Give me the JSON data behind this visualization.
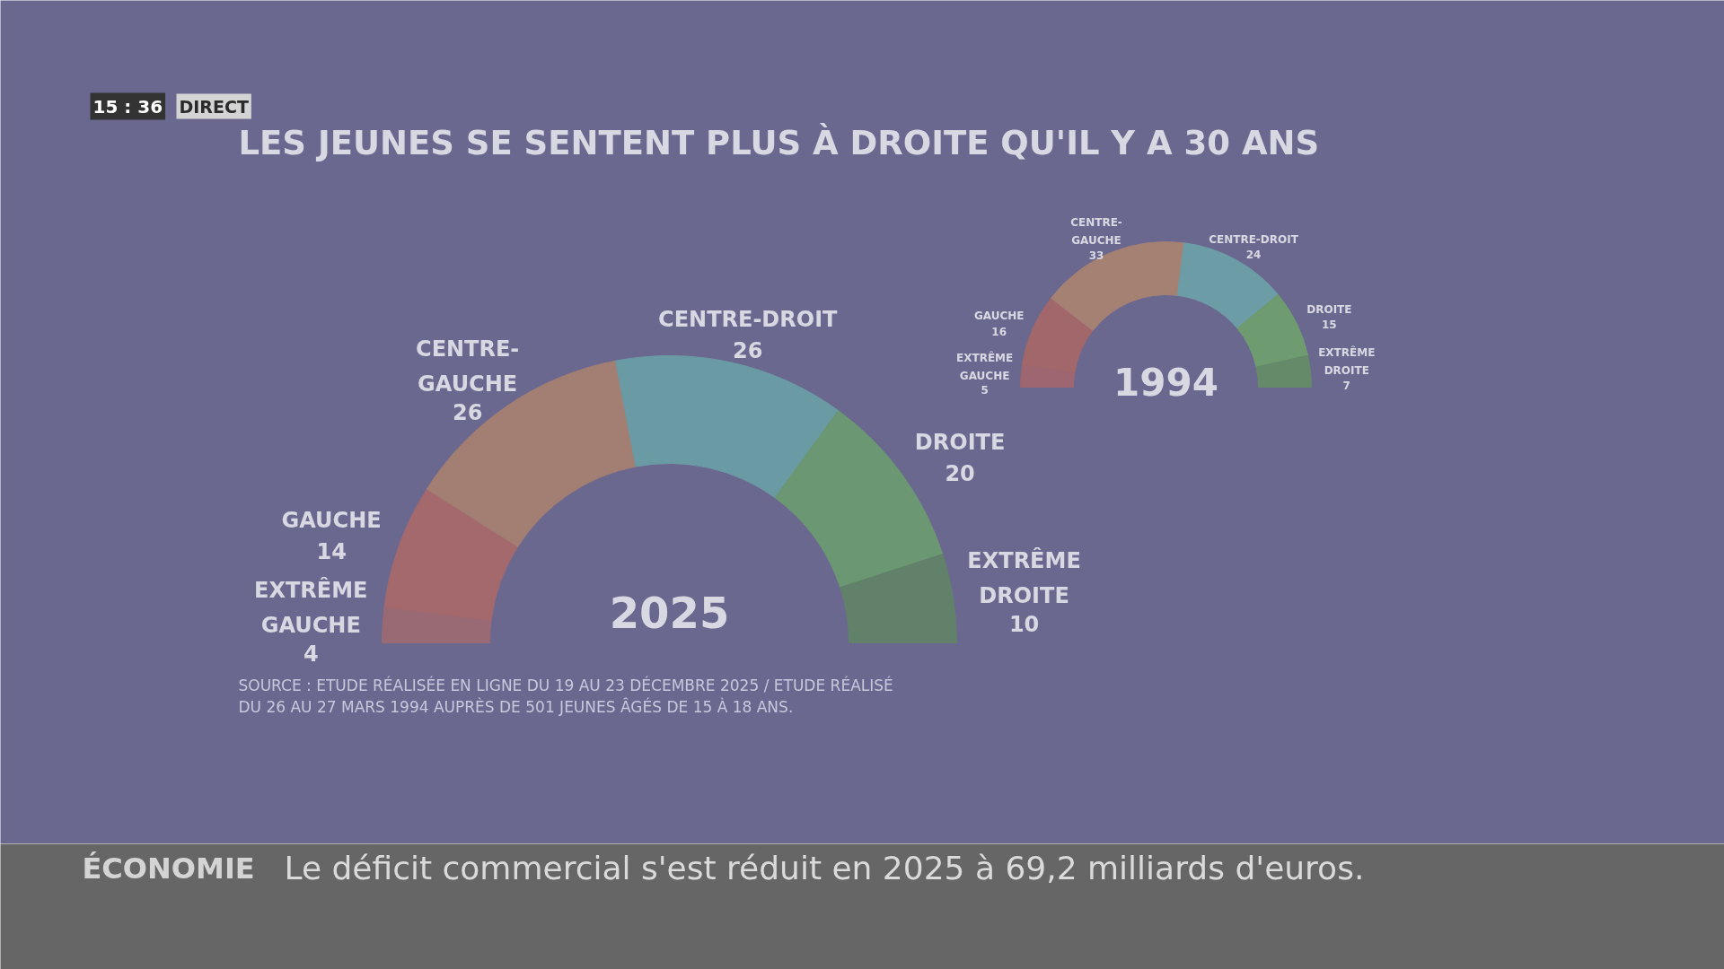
{
  "chart_data": [
    {
      "type": "donut",
      "title": "LES JEUNES SE SENTENT PLUS À DROITE QU'IL Y A 30 ANS",
      "subtitle": "2025",
      "categories": [
        "EXTRÊME GAUCHE",
        "GAUCHE",
        "CENTRE-GAUCHE",
        "CENTRE-DROIT",
        "DROITE",
        "EXTRÊME DROITE"
      ],
      "values": [
        4,
        14,
        26,
        26,
        20,
        10
      ],
      "colors": [
        "#9a6a74",
        "#a3696d",
        "#a27e73",
        "#6a9aa4",
        "#6b9772",
        "#62816a"
      ],
      "data_labels": true,
      "annotations": [
        "15 : 36",
        "DIRECT",
        "SOURCE : ETUDE RÉALISÉE EN LIGNE DU 19 AU 23 DÉCEMBRE 2025 / ETUDE RÉALISÉ DU 26 AU 27 MARS 1994 AUPRÈS DE 501 JEUNES ÂGÉS DE 15 À 18 ANS.",
        "ÉCONOMIE",
        "Le déficit commercial s'est réduit en 2025 à 69,2 milliards d'euros."
      ]
    },
    {
      "type": "donut",
      "subtitle": "1994",
      "categories": [
        "EXTRÊME GAUCHE",
        "GAUCHE",
        "CENTRE-GAUCHE",
        "CENTRE-DROIT",
        "DROITE",
        "EXTRÊME DROITE"
      ],
      "values": [
        5,
        16,
        33,
        24,
        15,
        7
      ],
      "colors": [
        "#9d6670",
        "#a1676a",
        "#a58174",
        "#6c9da7",
        "#6e9b70",
        "#658a69"
      ],
      "data_labels": true
    }
  ]
}
